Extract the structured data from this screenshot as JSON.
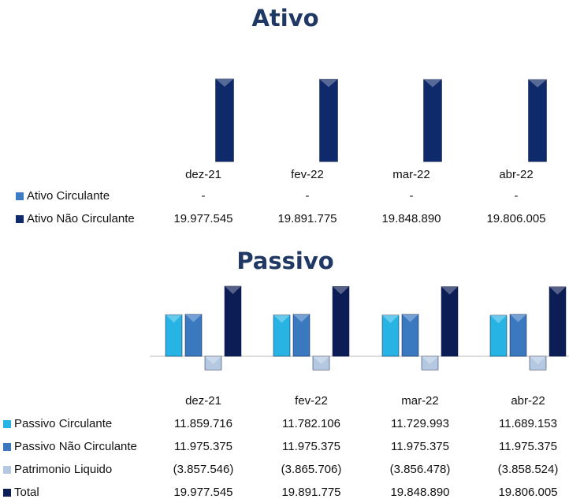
{
  "chart_data": [
    {
      "type": "bar",
      "title": "Ativo",
      "categories": [
        "dez-21",
        "fev-22",
        "mar-22",
        "abr-22"
      ],
      "series": [
        {
          "name": "Ativo Circulante",
          "color": "#3b7cc4",
          "values": [
            0,
            0,
            0,
            0
          ],
          "value_labels": [
            "-",
            "-",
            "-",
            "-"
          ]
        },
        {
          "name": "Ativo Não Circulante",
          "color": "#0f2a6b",
          "values": [
            19977545,
            19891775,
            19848890,
            19806005
          ],
          "value_labels": [
            "19.977.545",
            "19.891.775",
            "19.848.890",
            "19.806.005"
          ]
        }
      ]
    },
    {
      "type": "bar",
      "title": "Passivo",
      "categories": [
        "dez-21",
        "fev-22",
        "mar-22",
        "abr-22"
      ],
      "series": [
        {
          "name": "Passivo Circulante",
          "color": "#27b4e4",
          "values": [
            11859716,
            11782106,
            11729993,
            11689153
          ],
          "value_labels": [
            "11.859.716",
            "11.782.106",
            "11.729.993",
            "11.689.153"
          ]
        },
        {
          "name": "Passivo Não Circulante",
          "color": "#3a78c0",
          "values": [
            11975375,
            11975375,
            11975375,
            11975375
          ],
          "value_labels": [
            "11.975.375",
            "11.975.375",
            "11.975.375",
            "11.975.375"
          ]
        },
        {
          "name": "Patrimonio Liquido",
          "color": "#b4c8e2",
          "values": [
            -3857546,
            -3865706,
            -3856478,
            -3858524
          ],
          "value_labels": [
            "(3.857.546)",
            "(3.865.706)",
            "(3.856.478)",
            "(3.858.524)"
          ]
        },
        {
          "name": "Total",
          "color": "#0c1d56",
          "values": [
            19977545,
            19891775,
            19848890,
            19806005
          ],
          "value_labels": [
            "19.977.545",
            "19.891.775",
            "19.848.890",
            "19.806.005"
          ]
        }
      ]
    }
  ]
}
